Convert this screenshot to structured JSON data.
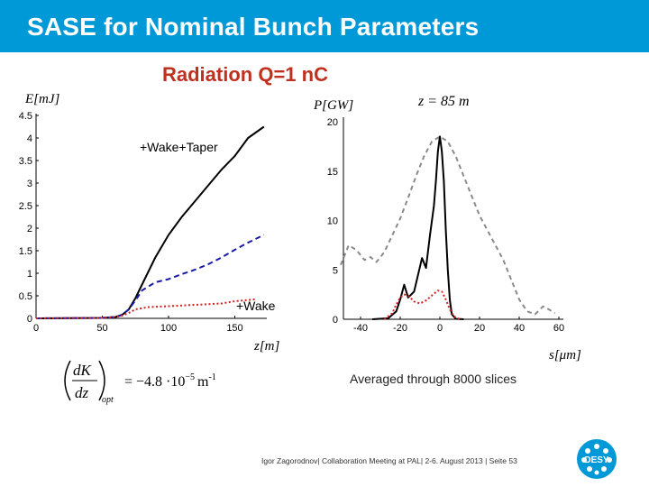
{
  "header": {
    "title": "SASE for Nominal Bunch Parameters",
    "subtitle": "Radiation Q=1 nC"
  },
  "colors": {
    "title_bar": "#0099d8",
    "subtitle": "#c0301f",
    "wake_taper": "#000000",
    "blue_dashed": "#1a1aa8",
    "wake_red": "#d42020",
    "gray_dashed": "#8a8a8a"
  },
  "formula": {
    "numerator": "dK",
    "denominator": "dz",
    "subscript": "opt",
    "equals": "= −4.8 ·10",
    "exponent": "−5",
    "unit": "m",
    "unit_exp": "-1"
  },
  "note": "Averaged through 8000 slices",
  "footer": "Igor Zagorodnov| Collaboration Meeting at PAL| 2-6. August 2013 | Seite 53",
  "logo": {
    "text": "DESY"
  },
  "chart_data": [
    {
      "type": "line",
      "xlabel": "z[m]",
      "ylabel": "E[mJ]",
      "xlim": [
        0,
        175
      ],
      "ylim": [
        0,
        4.5
      ],
      "x_ticks": [
        "0",
        "50",
        "100",
        "150"
      ],
      "y_ticks": [
        "0",
        "0.5",
        "1",
        "1.5",
        "2",
        "2.5",
        "3",
        "3.5",
        "4",
        "4.5"
      ],
      "annotations": [
        "+Wake+Taper",
        "+Wake"
      ],
      "series": [
        {
          "name": "+Wake+Taper",
          "style": "solid",
          "points": [
            [
              0,
              0
            ],
            [
              50,
              0.01
            ],
            [
              60,
              0.03
            ],
            [
              65,
              0.08
            ],
            [
              70,
              0.2
            ],
            [
              75,
              0.45
            ],
            [
              80,
              0.75
            ],
            [
              90,
              1.35
            ],
            [
              100,
              1.85
            ],
            [
              110,
              2.25
            ],
            [
              120,
              2.6
            ],
            [
              130,
              2.95
            ],
            [
              140,
              3.3
            ],
            [
              150,
              3.6
            ],
            [
              160,
              4.0
            ],
            [
              172,
              4.25
            ]
          ]
        },
        {
          "style": "dashed",
          "points": [
            [
              0,
              0
            ],
            [
              50,
              0.01
            ],
            [
              60,
              0.03
            ],
            [
              65,
              0.08
            ],
            [
              70,
              0.2
            ],
            [
              75,
              0.4
            ],
            [
              80,
              0.62
            ],
            [
              90,
              0.8
            ],
            [
              100,
              0.87
            ],
            [
              110,
              0.98
            ],
            [
              120,
              1.08
            ],
            [
              130,
              1.2
            ],
            [
              140,
              1.35
            ],
            [
              150,
              1.52
            ],
            [
              160,
              1.68
            ],
            [
              172,
              1.85
            ]
          ]
        },
        {
          "name": "+Wake",
          "style": "dotted",
          "points": [
            [
              0,
              0
            ],
            [
              50,
              0.01
            ],
            [
              60,
              0.03
            ],
            [
              65,
              0.06
            ],
            [
              70,
              0.12
            ],
            [
              75,
              0.2
            ],
            [
              85,
              0.25
            ],
            [
              100,
              0.27
            ],
            [
              120,
              0.3
            ],
            [
              140,
              0.33
            ],
            [
              150,
              0.38
            ],
            [
              165,
              0.42
            ]
          ]
        }
      ]
    },
    {
      "type": "line",
      "title": "z = 85 m",
      "xlabel": "s[μm]",
      "ylabel": "P[GW]",
      "xlim": [
        -50,
        60
      ],
      "ylim": [
        0,
        20
      ],
      "x_ticks": [
        "-40",
        "-20",
        "0",
        "20",
        "40",
        "60"
      ],
      "y_ticks": [
        "0",
        "5",
        "10",
        "15",
        "20"
      ],
      "series": [
        {
          "style": "dashed",
          "points": [
            [
              -50,
              5.5
            ],
            [
              -46,
              7.5
            ],
            [
              -42,
              7.0
            ],
            [
              -38,
              6.0
            ],
            [
              -35,
              6.3
            ],
            [
              -32,
              5.8
            ],
            [
              -28,
              6.8
            ],
            [
              -24,
              8.5
            ],
            [
              -20,
              10.2
            ],
            [
              -16,
              12.3
            ],
            [
              -12,
              14.5
            ],
            [
              -8,
              16.5
            ],
            [
              -4,
              18.0
            ],
            [
              0,
              18.5
            ],
            [
              4,
              18.0
            ],
            [
              8,
              16.5
            ],
            [
              12,
              14.5
            ],
            [
              16,
              12.5
            ],
            [
              20,
              10.5
            ],
            [
              24,
              9.0
            ],
            [
              28,
              7.5
            ],
            [
              32,
              6.0
            ],
            [
              36,
              4.0
            ],
            [
              40,
              2.0
            ],
            [
              44,
              0.8
            ],
            [
              48,
              0.5
            ],
            [
              52,
              1.3
            ],
            [
              55,
              1.0
            ],
            [
              58,
              0.6
            ]
          ]
        },
        {
          "style": "solid",
          "points": [
            [
              -34,
              0
            ],
            [
              -26,
              0.1
            ],
            [
              -22,
              0.8
            ],
            [
              -20,
              2.0
            ],
            [
              -18,
              3.5
            ],
            [
              -16,
              2.2
            ],
            [
              -13,
              2.8
            ],
            [
              -11,
              4.5
            ],
            [
              -9,
              6.2
            ],
            [
              -7,
              5.2
            ],
            [
              -5,
              8.5
            ],
            [
              -3,
              11.5
            ],
            [
              -2,
              14.0
            ],
            [
              -1,
              17.0
            ],
            [
              0,
              18.5
            ],
            [
              1,
              17.0
            ],
            [
              2,
              14.0
            ],
            [
              3,
              9.0
            ],
            [
              4,
              5.0
            ],
            [
              5,
              2.0
            ],
            [
              6,
              0.5
            ],
            [
              8,
              0.05
            ],
            [
              12,
              0
            ]
          ]
        },
        {
          "style": "dotted",
          "points": [
            [
              -28,
              0
            ],
            [
              -24,
              0.6
            ],
            [
              -22,
              1.5
            ],
            [
              -20,
              2.2
            ],
            [
              -18,
              2.5
            ],
            [
              -16,
              2.4
            ],
            [
              -13,
              1.8
            ],
            [
              -10,
              1.6
            ],
            [
              -7,
              1.9
            ],
            [
              -4,
              2.4
            ],
            [
              -1,
              2.9
            ],
            [
              1,
              2.8
            ],
            [
              3,
              2.0
            ],
            [
              5,
              1.0
            ],
            [
              7,
              0.3
            ],
            [
              10,
              0
            ]
          ]
        }
      ]
    }
  ]
}
